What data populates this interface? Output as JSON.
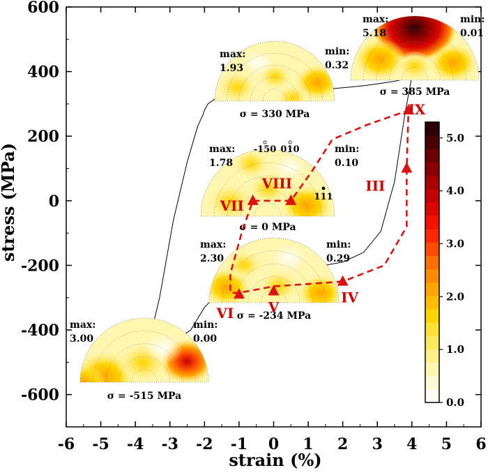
{
  "chart_data": {
    "type": "line",
    "xlabel": "strain (%)",
    "ylabel": "stress (MPa)",
    "xlim": [
      -6,
      6
    ],
    "ylim": [
      -700,
      600
    ],
    "x_ticks": [
      -6,
      -5,
      -4,
      -3,
      -2,
      -1,
      0,
      1,
      2,
      3,
      4,
      5,
      6
    ],
    "y_ticks": [
      -600,
      -400,
      -200,
      0,
      200,
      400,
      600
    ],
    "x_tick_labels": [
      "-6",
      "-5",
      "-4",
      "-3",
      "-2",
      "-1",
      "0",
      "1",
      "2",
      "3",
      "4",
      "5",
      "6"
    ],
    "y_tick_labels": [
      "-600",
      "-400",
      "-200",
      "0",
      "200",
      "400",
      "600"
    ],
    "series": [
      {
        "x": [
          -4.0,
          -3.7,
          -3.3,
          -2.9,
          -2.5,
          -2.2,
          -2.05,
          -2.0,
          -1.9,
          -1.7,
          -1.2,
          -0.6,
          -0.1,
          0.0,
          0.5,
          1.0,
          1.5,
          2.0,
          2.5,
          3.0,
          3.5,
          3.9,
          4.0
        ],
        "y": [
          -515,
          -480,
          -300,
          -60,
          120,
          230,
          265,
          280,
          300,
          315,
          322,
          328,
          330,
          333,
          337,
          341,
          345,
          350,
          355,
          362,
          370,
          380,
          385
        ]
      },
      {
        "x": [
          4.0,
          3.8,
          3.5,
          3.1,
          2.6,
          2.0,
          1.2,
          0.5,
          0.0,
          -0.3,
          -1.0,
          -1.6,
          -2.0,
          -2.4,
          -3.0,
          -3.5,
          -3.9,
          -4.0
        ],
        "y": [
          385,
          270,
          60,
          -95,
          -160,
          -190,
          -205,
          -218,
          -234,
          -246,
          -265,
          -285,
          -330,
          -400,
          -445,
          -480,
          -505,
          -515
        ]
      }
    ],
    "path_points": [
      {
        "label": "IV",
        "x": 2.0,
        "y": -250
      },
      {
        "label": "V",
        "x": 0.0,
        "y": -280
      },
      {
        "label": "VI",
        "x": -1.0,
        "y": -290
      },
      {
        "label": "VII",
        "x": -0.6,
        "y": 0
      },
      {
        "label": "VIII",
        "x": 0.5,
        "y": 0
      },
      {
        "label": "III",
        "x": 3.85,
        "y": 100
      },
      {
        "label": "IX",
        "x": 3.9,
        "y": 280
      }
    ],
    "dashed_path": [
      [
        2.0,
        -250
      ],
      [
        0.0,
        -265
      ],
      [
        -1.0,
        -285
      ],
      [
        -1.25,
        -285
      ],
      [
        -1.25,
        -225
      ],
      [
        -0.9,
        -90
      ],
      [
        -0.6,
        0
      ],
      [
        0.5,
        0
      ],
      [
        1.1,
        90
      ],
      [
        1.7,
        190
      ],
      [
        2.7,
        235
      ],
      [
        3.9,
        280
      ],
      [
        3.85,
        100
      ],
      [
        3.85,
        -80
      ],
      [
        3.2,
        -200
      ],
      [
        2.0,
        -250
      ]
    ],
    "colorbar": {
      "ticks": [
        0.0,
        1.0,
        2.0,
        3.0,
        4.0,
        5.0
      ],
      "tick_labels": [
        "0.0",
        "1.0",
        "2.0",
        "3.0",
        "4.0",
        "5.0"
      ],
      "range": [
        0.0,
        5.3
      ],
      "colors": [
        "#fffef6",
        "#fffbd6",
        "#fff6b0",
        "#fff08a",
        "#ffe95e",
        "#ffe232",
        "#ffd400",
        "#ffbf00",
        "#ffa400",
        "#ff8a00",
        "#ff6e00",
        "#ff4b00",
        "#ff2600",
        "#f51000",
        "#dd0600",
        "#c40000",
        "#a90000",
        "#8a0000",
        "#6b0000",
        "#4a0000",
        "#2c0000"
      ]
    },
    "pole_figures": [
      {
        "id": "pf1",
        "max_label": "max:",
        "max_value": "3.00",
        "min_label": "min:",
        "min_value": "0.00",
        "sigma": "σ = -515 MPa"
      },
      {
        "id": "pf2",
        "max_label": "max:",
        "max_value": "2.30",
        "min_label": "min:",
        "min_value": "0.29",
        "sigma": "σ = -234 MPa"
      },
      {
        "id": "pf3",
        "max_label": "max:",
        "max_value": "1.78",
        "min_label": "min:",
        "min_value": "0.10",
        "sigma": "σ = 0 MPa"
      },
      {
        "id": "pf4",
        "max_label": "max:",
        "max_value": "1.93",
        "min_label": "min:",
        "min_value": "0.32",
        "sigma": "σ = 330 MPa"
      },
      {
        "id": "pf5",
        "max_label": "max:",
        "max_value": "5.18",
        "min_label": "min:",
        "min_value": "0.01",
        "sigma": "σ = 385 MPa"
      }
    ],
    "hkl_labels": [
      "-150",
      "010",
      "111"
    ]
  }
}
